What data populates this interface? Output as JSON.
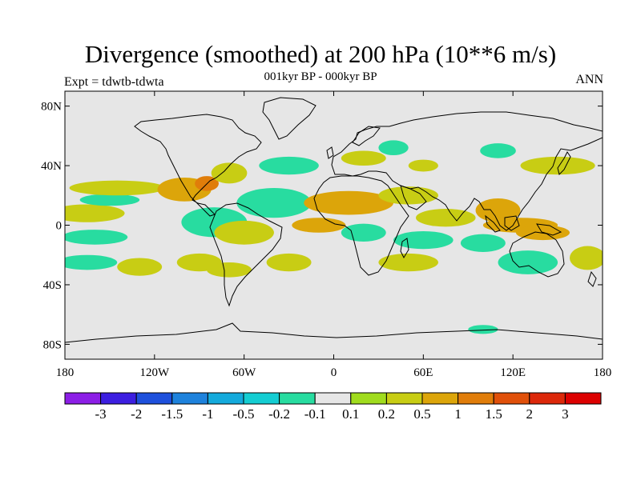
{
  "title": "Divergence (smoothed) at 200 hPa (10**6 m/s)",
  "subtitle": "001kyr BP - 000kyr BP",
  "left_string": "Expt = tdwtb-tdwta",
  "right_string": "ANN",
  "map": {
    "projection": "cylindrical equidistant",
    "lon_range": [
      -180,
      180
    ],
    "lat_range": [
      -90,
      90
    ],
    "background_color": "#e6e6e6",
    "coastline_color": "#000000"
  },
  "axes": {
    "lat_ticks": [
      {
        "value": 80,
        "label": "80N"
      },
      {
        "value": 40,
        "label": "40N"
      },
      {
        "value": 0,
        "label": "0"
      },
      {
        "value": -40,
        "label": "40S"
      },
      {
        "value": -80,
        "label": "80S"
      }
    ],
    "lon_ticks": [
      {
        "value": -180,
        "label": "180"
      },
      {
        "value": -120,
        "label": "120W"
      },
      {
        "value": -60,
        "label": "60W"
      },
      {
        "value": 0,
        "label": "0"
      },
      {
        "value": 60,
        "label": "60E"
      },
      {
        "value": 120,
        "label": "120E"
      },
      {
        "value": 180,
        "label": "180"
      }
    ]
  },
  "colorbar": {
    "colors": [
      "#8c1ee6",
      "#3c1ee0",
      "#1e50dc",
      "#1e82dc",
      "#14aadc",
      "#14cdd2",
      "#28dca0",
      "#e6e6e6",
      "#a0dc1e",
      "#c8cd14",
      "#dca50a",
      "#e07d0a",
      "#e0500a",
      "#dc280a",
      "#dc0000"
    ],
    "labels": [
      "-3",
      "-2",
      "-1.5",
      "-1",
      "-0.5",
      "-0.2",
      "-0.1",
      "0.1",
      "0.2",
      "0.5",
      "1",
      "1.5",
      "2",
      "3"
    ]
  },
  "chart_data": {
    "type": "heatmap",
    "title": "Divergence (smoothed) at 200 hPa (10**6 m/s)",
    "subtitle": "001kyr BP - 000kyr BP",
    "levels": [
      -3,
      -2,
      -1.5,
      -1,
      -0.5,
      -0.2,
      -0.1,
      0.1,
      0.2,
      0.5,
      1,
      1.5,
      2,
      3
    ],
    "patches": [
      {
        "lon": -165,
        "lat": 8,
        "rx": 25,
        "ry": 6,
        "level": 0.2
      },
      {
        "lon": -150,
        "lat": 17,
        "rx": 20,
        "ry": 4,
        "level": -0.2
      },
      {
        "lon": -145,
        "lat": 25,
        "rx": 32,
        "ry": 5,
        "level": 0.2
      },
      {
        "lon": -160,
        "lat": -8,
        "rx": 22,
        "ry": 5,
        "level": -0.2
      },
      {
        "lon": -165,
        "lat": -25,
        "rx": 20,
        "ry": 5,
        "level": -0.2
      },
      {
        "lon": -130,
        "lat": -28,
        "rx": 15,
        "ry": 6,
        "level": 0.2
      },
      {
        "lon": -100,
        "lat": 24,
        "rx": 18,
        "ry": 8,
        "level": 0.5
      },
      {
        "lon": -85,
        "lat": 28,
        "rx": 8,
        "ry": 5,
        "level": 1
      },
      {
        "lon": -70,
        "lat": 35,
        "rx": 12,
        "ry": 7,
        "level": 0.2
      },
      {
        "lon": -80,
        "lat": 2,
        "rx": 22,
        "ry": 10,
        "level": -0.2
      },
      {
        "lon": -60,
        "lat": -5,
        "rx": 20,
        "ry": 8,
        "level": 0.2
      },
      {
        "lon": -40,
        "lat": 15,
        "rx": 25,
        "ry": 10,
        "level": -0.2
      },
      {
        "lon": -30,
        "lat": 40,
        "rx": 20,
        "ry": 6,
        "level": -0.2
      },
      {
        "lon": -90,
        "lat": -25,
        "rx": 15,
        "ry": 6,
        "level": 0.2
      },
      {
        "lon": -70,
        "lat": -30,
        "rx": 15,
        "ry": 5,
        "level": 0.2
      },
      {
        "lon": -30,
        "lat": -25,
        "rx": 15,
        "ry": 6,
        "level": 0.2
      },
      {
        "lon": -10,
        "lat": 0,
        "rx": 18,
        "ry": 5,
        "level": 0.5
      },
      {
        "lon": 10,
        "lat": 15,
        "rx": 30,
        "ry": 8,
        "level": 0.5
      },
      {
        "lon": 20,
        "lat": 45,
        "rx": 15,
        "ry": 5,
        "level": 0.2
      },
      {
        "lon": 20,
        "lat": -5,
        "rx": 15,
        "ry": 6,
        "level": -0.2
      },
      {
        "lon": 40,
        "lat": 52,
        "rx": 10,
        "ry": 5,
        "level": -0.2
      },
      {
        "lon": 50,
        "lat": 20,
        "rx": 20,
        "ry": 6,
        "level": 0.2
      },
      {
        "lon": 60,
        "lat": -10,
        "rx": 20,
        "ry": 6,
        "level": -0.2
      },
      {
        "lon": 50,
        "lat": -25,
        "rx": 20,
        "ry": 6,
        "level": 0.2
      },
      {
        "lon": 75,
        "lat": 5,
        "rx": 20,
        "ry": 6,
        "level": 0.2
      },
      {
        "lon": 110,
        "lat": 10,
        "rx": 15,
        "ry": 8,
        "level": 0.5
      },
      {
        "lon": 125,
        "lat": 0,
        "rx": 25,
        "ry": 5,
        "level": 0.5
      },
      {
        "lon": 140,
        "lat": -5,
        "rx": 18,
        "ry": 5,
        "level": 0.5
      },
      {
        "lon": 100,
        "lat": -12,
        "rx": 15,
        "ry": 6,
        "level": -0.2
      },
      {
        "lon": 130,
        "lat": -25,
        "rx": 20,
        "ry": 8,
        "level": -0.2
      },
      {
        "lon": 110,
        "lat": 50,
        "rx": 12,
        "ry": 5,
        "level": -0.2
      },
      {
        "lon": 150,
        "lat": 40,
        "rx": 25,
        "ry": 6,
        "level": 0.2
      },
      {
        "lon": 170,
        "lat": -22,
        "rx": 12,
        "ry": 8,
        "level": 0.2
      },
      {
        "lon": 60,
        "lat": 40,
        "rx": 10,
        "ry": 4,
        "level": 0.2
      },
      {
        "lon": 100,
        "lat": -70,
        "rx": 10,
        "ry": 3,
        "level": -0.2
      }
    ]
  }
}
